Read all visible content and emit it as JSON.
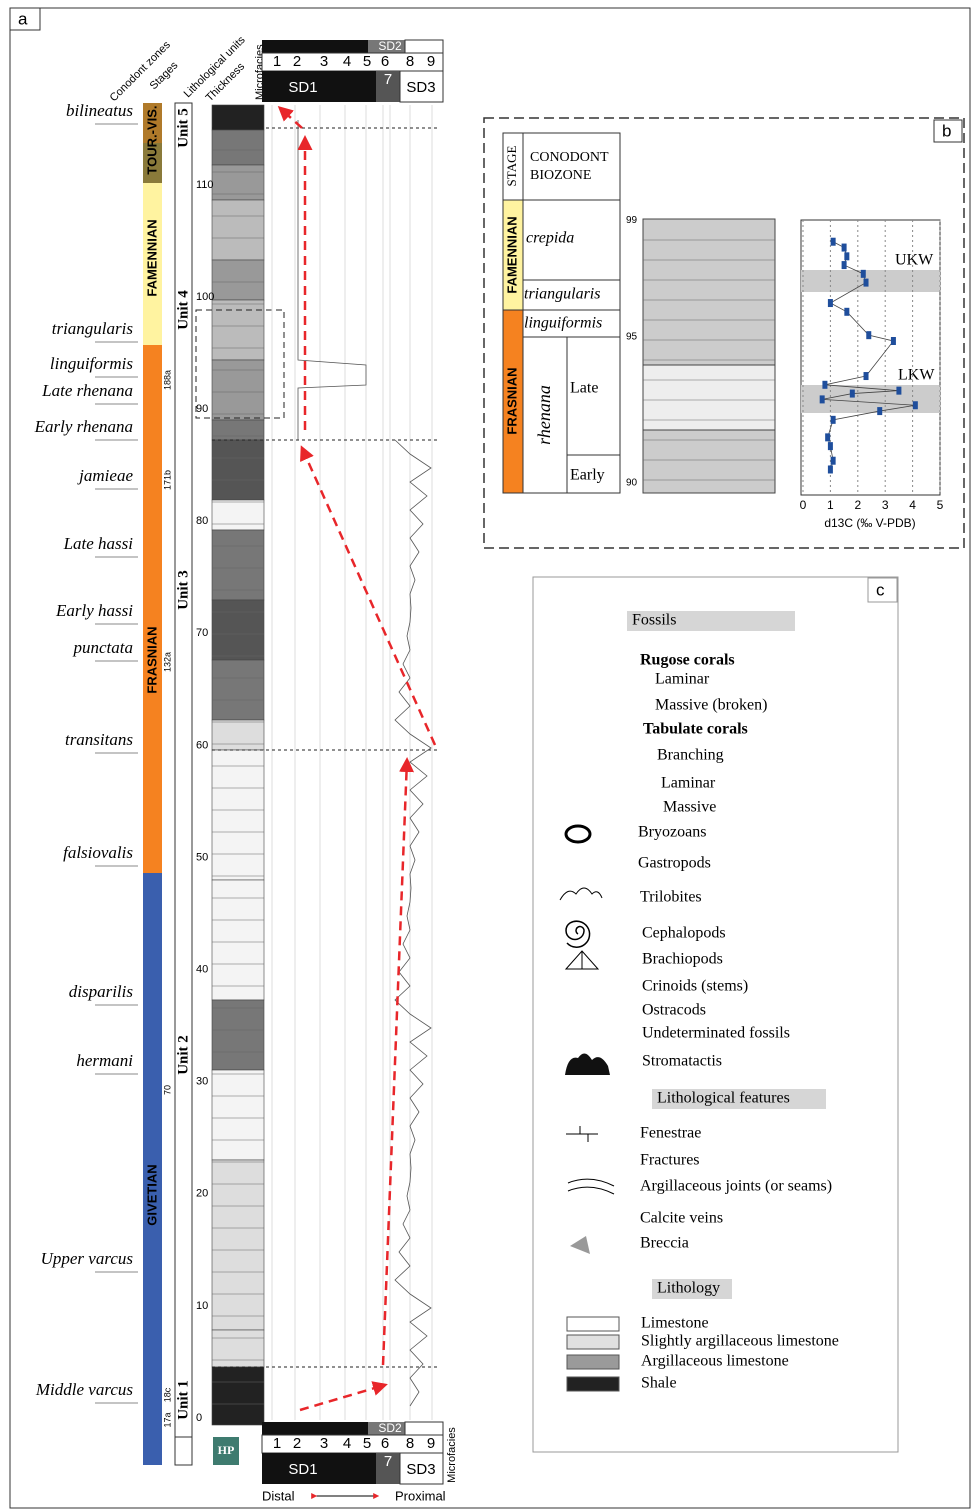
{
  "panel_a": {
    "label": "a",
    "column_headers": [
      "Conodont zones",
      "Stages",
      "Lithological units",
      "Thickness",
      "Microfacies"
    ],
    "conodont_zones": [
      "bilineatus",
      "triangularis",
      "linguiformis",
      "Late rhenana",
      "Early rhenana",
      "jamieae",
      "Late hassi",
      "Early hassi",
      "punctata",
      "transitans",
      "falsiovalis",
      "disparilis",
      "hermani",
      "Upper varcus",
      "Middle varcus"
    ],
    "stages": [
      "TOUR.-VIS.",
      "FAMENNIAN",
      "FRASNIAN",
      "GIVETIAN"
    ],
    "units": [
      "Unit 5",
      "Unit 4",
      "Unit 3",
      "Unit 2",
      "Unit 1"
    ],
    "samples": [
      "188a",
      "171b",
      "132a",
      "70",
      "17a",
      "18c"
    ],
    "thickness_ticks": [
      0,
      10,
      20,
      30,
      40,
      50,
      60,
      70,
      80,
      90,
      100,
      110
    ],
    "microfacies": {
      "numbers": [
        1,
        2,
        3,
        4,
        5,
        6,
        7,
        8,
        9
      ],
      "groups": [
        "SD1",
        "SD2",
        "SD3"
      ]
    },
    "section_code": "HP",
    "distal": "Distal",
    "proximal": "Proximal"
  },
  "panel_b": {
    "label": "b",
    "stage_header": "STAGE",
    "biozone_header": "CONODONT BIOZONE",
    "stages": [
      "FAMENNIAN",
      "FRASNIAN"
    ],
    "zones": [
      "crepida",
      "triangularis",
      "linguiformis",
      "rhenana"
    ],
    "subzones": [
      "Late",
      "Early"
    ],
    "thickness_ticks": [
      90,
      95,
      99
    ],
    "chart": {
      "type": "line",
      "xlim": [
        0,
        5
      ],
      "xticks": [
        0,
        1,
        2,
        3,
        4,
        5
      ],
      "xlabel": "d13C (‰ V-PDB)",
      "bands": [
        "UKW",
        "LKW"
      ],
      "x": [
        1.1,
        1.5,
        1.6,
        1.5,
        2.2,
        2.3,
        1.0,
        1.6,
        2.4,
        3.3,
        2.3,
        0.8,
        3.5,
        1.8,
        0.7,
        4.1,
        2.8,
        1.1,
        0.9,
        1.0,
        1.1,
        1.0
      ],
      "y": [
        98.4,
        98.2,
        97.9,
        97.6,
        97.3,
        97.0,
        96.3,
        96.0,
        95.2,
        95.0,
        93.8,
        93.5,
        93.3,
        93.2,
        93.0,
        92.8,
        92.6,
        92.3,
        91.7,
        91.4,
        90.9,
        90.6
      ]
    }
  },
  "panel_c": {
    "label": "c",
    "fossils_heading": "Fossils",
    "fossils": [
      "Rugose corals",
      "Laminar",
      "Massive (broken)",
      "Tabulate corals",
      "Branching",
      "Laminar",
      "Massive",
      "Bryozoans",
      "Gastropods",
      "Trilobites",
      "Cephalopods",
      "Brachiopods",
      "Crinoids (stems)",
      "Ostracods",
      "Undeterminated fossils",
      "Stromatactis"
    ],
    "features_heading": "Lithological features",
    "features": [
      "Fenestrae",
      "Fractures",
      "Argillaceous joints (or seams)",
      "Calcite veins",
      "Breccia"
    ],
    "lithology_heading": "Lithology",
    "lithology": [
      "Limestone",
      "Slightly argillaceous limestone",
      "Argillaceous limestone",
      "Shale"
    ]
  }
}
